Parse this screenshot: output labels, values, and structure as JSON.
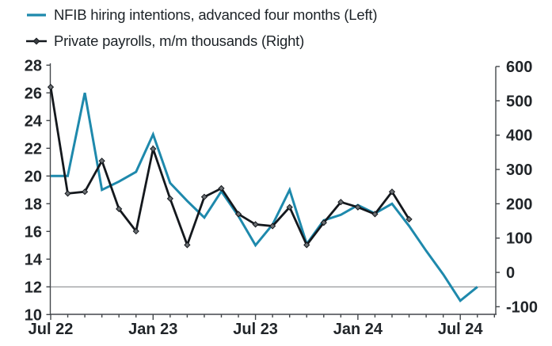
{
  "legend": {
    "items": [
      {
        "label": "NFIB hiring intentions, advanced four months (Left)",
        "color": "#1e89ac",
        "marker": "line"
      },
      {
        "label": "Private payrolls, m/m thousands (Right)",
        "color": "#14181d",
        "marker": "line-diamond"
      }
    ]
  },
  "chart_data": {
    "type": "line",
    "title": "",
    "categories": [
      "Jul 22",
      "Aug 22",
      "Sep 22",
      "Oct 22",
      "Nov 22",
      "Dec 22",
      "Jan 23",
      "Feb 23",
      "Mar 23",
      "Apr 23",
      "May 23",
      "Jun 23",
      "Jul 23",
      "Aug 23",
      "Sep 23",
      "Oct 23",
      "Nov 23",
      "Dec 23",
      "Jan 24",
      "Feb 24",
      "Mar 24",
      "Apr 24",
      "May 24",
      "Jun 24",
      "Jul 24",
      "Aug 24"
    ],
    "series": [
      {
        "name": "NFIB hiring intentions, advanced four months",
        "axis": "left",
        "color": "#1e89ac",
        "marker": "none",
        "values": [
          20,
          20,
          26,
          19,
          19.6,
          20.3,
          23,
          19.5,
          18.2,
          17,
          18.9,
          17.1,
          15,
          16.5,
          19,
          15.1,
          16.8,
          17.2,
          17.9,
          17.3,
          18,
          16.4,
          14.6,
          12.9,
          11,
          12
        ]
      },
      {
        "name": "Private payrolls, m/m thousands",
        "axis": "right",
        "color": "#14181d",
        "marker": "diamond",
        "marker_fill": "#6b6f73",
        "values": [
          540,
          230,
          235,
          325,
          185,
          120,
          360,
          215,
          80,
          220,
          245,
          170,
          140,
          135,
          190,
          80,
          145,
          205,
          190,
          170,
          235,
          155
        ]
      }
    ],
    "left_axis": {
      "min": 10,
      "max": 28,
      "step": 2,
      "ticks": [
        28,
        26,
        24,
        22,
        20,
        18,
        16,
        14,
        12,
        10
      ]
    },
    "right_axis": {
      "min": -100,
      "max": 600,
      "step": 100,
      "ticks": [
        600,
        500,
        400,
        300,
        200,
        100,
        0,
        -100
      ]
    },
    "x_axis": {
      "minor_tick_every_months": 1,
      "major_ticks": [
        {
          "month_index": 0,
          "label": "Jul 22"
        },
        {
          "month_index": 6,
          "label": "Jan 23"
        },
        {
          "month_index": 12,
          "label": "Jul 23"
        },
        {
          "month_index": 18,
          "label": "Jan 24"
        },
        {
          "month_index": 24,
          "label": "Jul 24"
        }
      ]
    },
    "reference_line": {
      "axis": "left",
      "value": 12
    },
    "grid": "off",
    "legend_position": "top-left"
  }
}
